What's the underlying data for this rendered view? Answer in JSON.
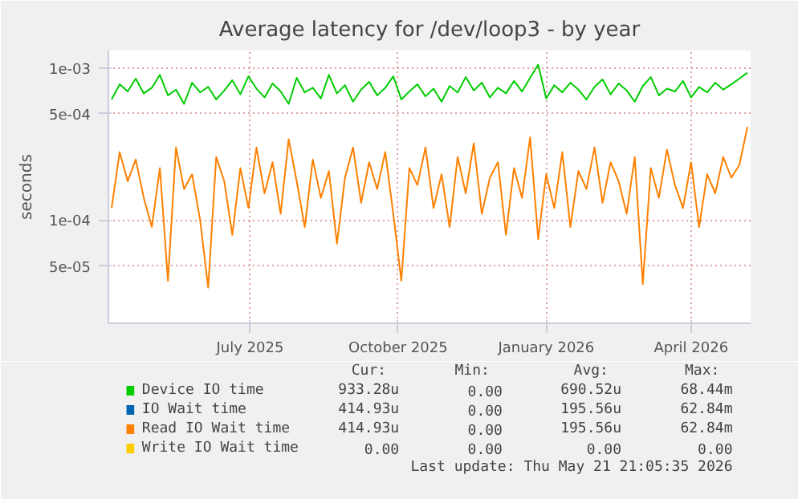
{
  "chart_data": {
    "type": "line",
    "title": "Average latency for /dev/loop3 - by year",
    "ylabel": "seconds",
    "log": "y",
    "grid": true,
    "legend": "bottom",
    "line_style": "solid",
    "marker": "none",
    "x": [
      "2025-04-21",
      "2025-04-26",
      "2025-05-01",
      "2025-05-06",
      "2025-05-11",
      "2025-05-16",
      "2025-05-21",
      "2025-05-26",
      "2025-05-31",
      "2025-06-05",
      "2025-06-10",
      "2025-06-15",
      "2025-06-20",
      "2025-06-25",
      "2025-06-30",
      "2025-07-05",
      "2025-07-10",
      "2025-07-15",
      "2025-07-20",
      "2025-07-25",
      "2025-07-30",
      "2025-08-04",
      "2025-08-09",
      "2025-08-14",
      "2025-08-19",
      "2025-08-24",
      "2025-08-29",
      "2025-09-03",
      "2025-09-08",
      "2025-09-13",
      "2025-09-18",
      "2025-09-23",
      "2025-09-28",
      "2025-10-03",
      "2025-10-08",
      "2025-10-13",
      "2025-10-18",
      "2025-10-23",
      "2025-10-28",
      "2025-11-02",
      "2025-11-07",
      "2025-11-12",
      "2025-11-17",
      "2025-11-22",
      "2025-11-27",
      "2025-12-02",
      "2025-12-07",
      "2025-12-12",
      "2025-12-17",
      "2025-12-22",
      "2025-12-27",
      "2026-01-01",
      "2026-01-06",
      "2026-01-11",
      "2026-01-16",
      "2026-01-21",
      "2026-01-26",
      "2026-01-31",
      "2026-02-05",
      "2026-02-10",
      "2026-02-15",
      "2026-02-20",
      "2026-02-25",
      "2026-03-02",
      "2026-03-07",
      "2026-03-12",
      "2026-03-17",
      "2026-03-22",
      "2026-03-27",
      "2026-04-01",
      "2026-04-06",
      "2026-04-11",
      "2026-04-16",
      "2026-04-21",
      "2026-04-26",
      "2026-05-01",
      "2026-05-06",
      "2026-05-11",
      "2026-05-16",
      "2026-05-21"
    ],
    "xlim": [
      "2025-04-19",
      "2026-05-23"
    ],
    "xticks": [
      {
        "value": "2025-07-16",
        "label": "July 2025"
      },
      {
        "value": "2025-10-16",
        "label": "October 2025"
      },
      {
        "value": "2026-01-16",
        "label": "January 2026"
      },
      {
        "value": "2026-04-16",
        "label": "April 2026"
      }
    ],
    "ylim": [
      2.1e-05,
      0.0013
    ],
    "yticks": [
      {
        "value": 5e-05,
        "label": "5e-05"
      },
      {
        "value": 0.0001,
        "label": "1e-04"
      },
      {
        "value": 0.0005,
        "label": "5e-04"
      },
      {
        "value": 0.001,
        "label": "1e-03"
      }
    ],
    "series": [
      {
        "name": "Device IO time",
        "color": "#00cc00",
        "values": [
          0.00062,
          0.00078,
          0.0007,
          0.00085,
          0.00068,
          0.00074,
          0.0009,
          0.00066,
          0.00072,
          0.00058,
          0.0008,
          0.00069,
          0.00075,
          0.00062,
          0.00071,
          0.00083,
          0.00067,
          0.00088,
          0.00073,
          0.00064,
          0.00079,
          0.0007,
          0.00058,
          0.00086,
          0.00069,
          0.00074,
          0.00063,
          0.0009,
          0.00068,
          0.00077,
          0.0006,
          0.00072,
          0.00081,
          0.00066,
          0.00074,
          0.00088,
          0.00062,
          0.0007,
          0.00078,
          0.00065,
          0.00073,
          0.0006,
          0.00076,
          0.00069,
          0.00087,
          0.00071,
          0.0008,
          0.00064,
          0.00074,
          0.00068,
          0.00082,
          0.0007,
          0.00086,
          0.00105,
          0.00063,
          0.00077,
          0.00069,
          0.0008,
          0.00072,
          0.00062,
          0.00075,
          0.00084,
          0.00067,
          0.00079,
          0.00071,
          0.0006,
          0.00076,
          0.00087,
          0.00066,
          0.00073,
          0.0007,
          0.00082,
          0.00064,
          0.00075,
          0.00069,
          0.0008,
          0.00072,
          0.00078,
          0.00085,
          0.00093
        ]
      },
      {
        "name": "IO Wait time",
        "color": "#0066b3",
        "values": [
          null,
          null,
          null,
          null,
          null,
          null,
          null,
          null,
          null,
          null,
          null,
          null,
          null,
          null,
          null,
          null,
          null,
          null,
          null,
          null,
          null,
          null,
          null,
          null,
          null,
          null,
          null,
          null,
          null,
          null,
          null,
          null,
          null,
          null,
          null,
          null,
          null,
          null,
          null,
          null,
          null,
          null,
          null,
          null,
          null,
          null,
          null,
          null,
          null,
          null,
          null,
          null,
          null,
          null,
          null,
          null,
          null,
          null,
          null,
          null,
          null,
          null,
          null,
          null,
          null,
          null,
          null,
          null,
          null,
          null,
          null,
          null,
          null,
          null,
          null,
          null,
          null,
          null,
          null,
          null
        ]
      },
      {
        "name": "Read IO Wait time",
        "color": "#ff8000",
        "values": [
          0.00012,
          0.00028,
          0.00018,
          0.00025,
          0.00014,
          9e-05,
          0.00022,
          4e-05,
          0.0003,
          0.00016,
          0.0002,
          0.0001,
          3.6e-05,
          0.00026,
          0.00018,
          8e-05,
          0.00022,
          0.00012,
          0.0003,
          0.00015,
          0.00024,
          0.00011,
          0.00034,
          0.00018,
          9e-05,
          0.00025,
          0.00014,
          0.00021,
          7e-05,
          0.00019,
          0.0003,
          0.00013,
          0.00024,
          0.00016,
          0.00028,
          0.00011,
          4e-05,
          0.00022,
          0.00017,
          0.0003,
          0.00012,
          0.0002,
          9e-05,
          0.00026,
          0.00015,
          0.00032,
          0.00011,
          0.00019,
          0.00024,
          8e-05,
          0.00022,
          0.00014,
          0.00035,
          7.5e-05,
          0.0002,
          0.00012,
          0.00028,
          9e-05,
          0.00021,
          0.00016,
          0.0003,
          0.00013,
          0.00024,
          0.00018,
          0.00011,
          0.00026,
          3.8e-05,
          0.00022,
          0.00014,
          0.00029,
          0.00017,
          0.00012,
          0.00024,
          9e-05,
          0.0002,
          0.00015,
          0.00026,
          0.00019,
          0.00023,
          0.00041
        ]
      },
      {
        "name": "Write IO Wait time",
        "color": "#ffcc00",
        "values": [
          null,
          null,
          null,
          null,
          null,
          null,
          null,
          null,
          null,
          null,
          null,
          null,
          null,
          null,
          null,
          null,
          null,
          null,
          null,
          null,
          null,
          null,
          null,
          null,
          null,
          null,
          null,
          null,
          null,
          null,
          null,
          null,
          null,
          null,
          null,
          null,
          null,
          null,
          null,
          null,
          null,
          null,
          null,
          null,
          null,
          null,
          null,
          null,
          null,
          null,
          null,
          null,
          null,
          null,
          null,
          null,
          null,
          null,
          null,
          null,
          null,
          null,
          null,
          null,
          null,
          null,
          null,
          null,
          null,
          null,
          null,
          null,
          null,
          null,
          null,
          null,
          null,
          null,
          null,
          null
        ]
      }
    ],
    "annotations": [
      "Cur:",
      "Min:",
      "Avg:",
      "Max:",
      "933.28u",
      "0.00",
      "690.52u",
      "68.44m",
      "414.93u",
      "0.00",
      "195.56u",
      "62.84m",
      "414.93u",
      "0.00",
      "195.56u",
      "62.84m",
      "0.00",
      "0.00",
      "0.00",
      "0.00",
      "Last update: Thu May 21 21:05:35 2026"
    ]
  }
}
